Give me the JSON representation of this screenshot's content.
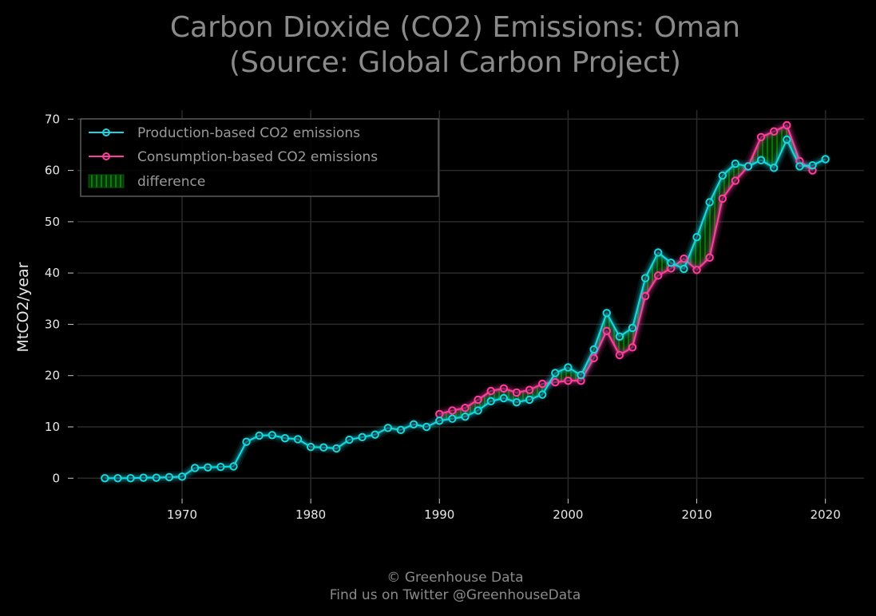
{
  "colors": {
    "background": "#000000",
    "production": "#18d8e0",
    "consumption": "#ff3fa0",
    "difference": "#0a7a0a",
    "grid": "#2a2a2a",
    "title": "#8a8a8a"
  },
  "chart_data": {
    "type": "line",
    "title": "Carbon Dioxide (CO2) Emissions: Oman",
    "subtitle": "(Source: Global Carbon Project)",
    "ylabel": "MtCO2/year",
    "xlabel": "",
    "xlim": [
      1961,
      2023
    ],
    "ylim": [
      -4,
      73
    ],
    "xticks": [
      1970,
      1980,
      1990,
      2000,
      2010,
      2020
    ],
    "yticks": [
      0,
      10,
      20,
      30,
      40,
      50,
      60,
      70
    ],
    "grid": true,
    "legend": {
      "position": "top-left",
      "entries": [
        "Production-based CO2 emissions",
        "Consumption-based CO2 emissions",
        "difference"
      ]
    },
    "series": [
      {
        "name": "Production-based CO2 emissions",
        "x": [
          1964,
          1965,
          1966,
          1967,
          1968,
          1969,
          1970,
          1971,
          1972,
          1973,
          1974,
          1975,
          1976,
          1977,
          1978,
          1979,
          1980,
          1981,
          1982,
          1983,
          1984,
          1985,
          1986,
          1987,
          1988,
          1989,
          1990,
          1991,
          1992,
          1993,
          1994,
          1995,
          1996,
          1997,
          1998,
          1999,
          2000,
          2001,
          2002,
          2003,
          2004,
          2005,
          2006,
          2007,
          2008,
          2009,
          2010,
          2011,
          2012,
          2013,
          2014,
          2015,
          2016,
          2017,
          2018,
          2019,
          2020
        ],
        "values": [
          0.0,
          0.0,
          0.0,
          0.1,
          0.1,
          0.2,
          0.3,
          2.0,
          2.1,
          2.2,
          2.3,
          7.1,
          8.3,
          8.4,
          7.8,
          7.6,
          6.1,
          6.0,
          5.8,
          7.5,
          8.0,
          8.5,
          9.8,
          9.4,
          10.5,
          10.0,
          11.2,
          11.6,
          12.0,
          13.2,
          15.0,
          15.6,
          14.8,
          15.3,
          16.3,
          20.5,
          21.6,
          20.1,
          25.1,
          32.2,
          27.6,
          29.3,
          39.0,
          44.0,
          42.0,
          40.8,
          47.0,
          53.8,
          59.0,
          61.3,
          60.8,
          62.0,
          60.5,
          66.0,
          60.8,
          61.0,
          62.2
        ]
      },
      {
        "name": "Consumption-based CO2 emissions",
        "x": [
          1990,
          1991,
          1992,
          1993,
          1994,
          1995,
          1996,
          1997,
          1998,
          1999,
          2000,
          2001,
          2002,
          2003,
          2004,
          2005,
          2006,
          2007,
          2008,
          2009,
          2010,
          2011,
          2012,
          2013,
          2014,
          2015,
          2016,
          2017,
          2018,
          2019
        ],
        "values": [
          12.5,
          13.2,
          13.7,
          15.3,
          17.0,
          17.5,
          16.7,
          17.2,
          18.4,
          18.7,
          19.0,
          19.0,
          23.4,
          28.7,
          24.0,
          25.5,
          35.5,
          39.5,
          40.9,
          42.8,
          40.6,
          43.0,
          54.5,
          58.0,
          60.8,
          66.5,
          67.6,
          68.8,
          61.8,
          60.0
        ]
      }
    ]
  },
  "footer": {
    "line1": "© Greenhouse Data",
    "line2": "Find us on Twitter @GreenhouseData"
  }
}
